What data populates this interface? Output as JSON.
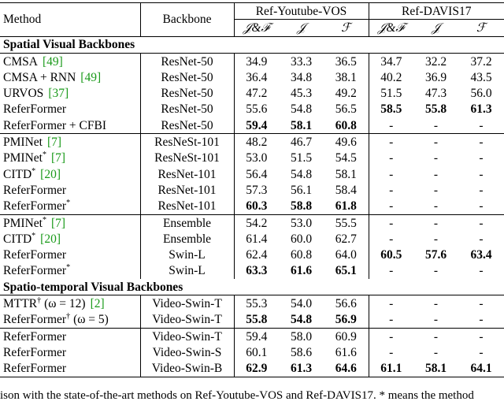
{
  "header": {
    "method": "Method",
    "backbone": "Backbone",
    "groups": [
      "Ref-Youtube-VOS",
      "Ref-DAVIS17"
    ],
    "metrics": [
      "𝒥&ℱ",
      "𝒥",
      "ℱ",
      "𝒥&ℱ",
      "𝒥",
      "ℱ"
    ]
  },
  "sections": [
    {
      "title": "Spatial Visual Backbones",
      "blocks": [
        [
          {
            "method": [
              {
                "t": "CMSA"
              },
              {
                "t": "[49]",
                "k": "cite"
              }
            ],
            "backbone": "ResNet-50",
            "values": [
              "34.9",
              "33.3",
              "36.5",
              "34.7",
              "32.2",
              "37.2"
            ],
            "bold": []
          },
          {
            "method": [
              {
                "t": "CMSA + RNN"
              },
              {
                "t": "[49]",
                "k": "cite"
              }
            ],
            "backbone": "ResNet-50",
            "values": [
              "36.4",
              "34.8",
              "38.1",
              "40.2",
              "36.9",
              "43.5"
            ],
            "bold": []
          },
          {
            "method": [
              {
                "t": "URVOS"
              },
              {
                "t": "[37]",
                "k": "cite"
              }
            ],
            "backbone": "ResNet-50",
            "values": [
              "47.2",
              "45.3",
              "49.2",
              "51.5",
              "47.3",
              "56.0"
            ],
            "bold": []
          },
          {
            "method": [
              {
                "t": "ReferFormer"
              }
            ],
            "backbone": "ResNet-50",
            "values": [
              "55.6",
              "54.8",
              "56.5",
              "58.5",
              "55.8",
              "61.3"
            ],
            "bold": [
              3,
              4,
              5
            ]
          },
          {
            "method": [
              {
                "t": "ReferFormer + CFBI"
              }
            ],
            "backbone": "ResNet-50",
            "values": [
              "59.4",
              "58.1",
              "60.8",
              "-",
              "-",
              "-"
            ],
            "bold": [
              0,
              1,
              2
            ]
          }
        ],
        [
          {
            "method": [
              {
                "t": "PMINet"
              },
              {
                "t": "[7]",
                "k": "cite"
              }
            ],
            "backbone": "ResNeSt-101",
            "values": [
              "48.2",
              "46.7",
              "49.6",
              "-",
              "-",
              "-"
            ],
            "bold": []
          },
          {
            "method": [
              {
                "t": "PMINet"
              },
              {
                "t": "*",
                "k": "sup"
              },
              {
                "t": "[7]",
                "k": "cite"
              }
            ],
            "backbone": "ResNeSt-101",
            "values": [
              "53.0",
              "51.5",
              "54.5",
              "-",
              "-",
              "-"
            ],
            "bold": []
          },
          {
            "method": [
              {
                "t": "CITD"
              },
              {
                "t": "*",
                "k": "sup"
              },
              {
                "t": "[20]",
                "k": "cite"
              }
            ],
            "backbone": "ResNet-101",
            "values": [
              "56.4",
              "54.8",
              "58.1",
              "-",
              "-",
              "-"
            ],
            "bold": []
          },
          {
            "method": [
              {
                "t": "ReferFormer"
              }
            ],
            "backbone": "ResNet-101",
            "values": [
              "57.3",
              "56.1",
              "58.4",
              "-",
              "-",
              "-"
            ],
            "bold": []
          },
          {
            "method": [
              {
                "t": "ReferFormer"
              },
              {
                "t": "*",
                "k": "sup"
              }
            ],
            "backbone": "ResNet-101",
            "values": [
              "60.3",
              "58.8",
              "61.8",
              "-",
              "-",
              "-"
            ],
            "bold": [
              0,
              1,
              2
            ]
          }
        ],
        [
          {
            "method": [
              {
                "t": "PMINet"
              },
              {
                "t": "*",
                "k": "sup"
              },
              {
                "t": "[7]",
                "k": "cite"
              }
            ],
            "backbone": "Ensemble",
            "values": [
              "54.2",
              "53.0",
              "55.5",
              "-",
              "-",
              "-"
            ],
            "bold": []
          },
          {
            "method": [
              {
                "t": "CITD"
              },
              {
                "t": "*",
                "k": "sup"
              },
              {
                "t": "[20]",
                "k": "cite"
              }
            ],
            "backbone": "Ensemble",
            "values": [
              "61.4",
              "60.0",
              "62.7",
              "-",
              "-",
              "-"
            ],
            "bold": []
          },
          {
            "method": [
              {
                "t": "ReferFormer"
              }
            ],
            "backbone": "Swin-L",
            "values": [
              "62.4",
              "60.8",
              "64.0",
              "60.5",
              "57.6",
              "63.4"
            ],
            "bold": [
              3,
              4,
              5
            ]
          },
          {
            "method": [
              {
                "t": "ReferFormer"
              },
              {
                "t": "*",
                "k": "sup"
              }
            ],
            "backbone": "Swin-L",
            "values": [
              "63.3",
              "61.6",
              "65.1",
              "-",
              "-",
              "-"
            ],
            "bold": [
              0,
              1,
              2
            ]
          }
        ]
      ]
    },
    {
      "title": "Spatio-temporal Visual Backbones",
      "blocks": [
        [
          {
            "method": [
              {
                "t": "MTTR"
              },
              {
                "t": "†",
                "k": "sup"
              },
              {
                "t": "(ω = 12)"
              },
              {
                "t": "[2]",
                "k": "cite"
              }
            ],
            "backbone": "Video-Swin-T",
            "values": [
              "55.3",
              "54.0",
              "56.6",
              "-",
              "-",
              "-"
            ],
            "bold": []
          },
          {
            "method": [
              {
                "t": "ReferFormer"
              },
              {
                "t": "†",
                "k": "sup"
              },
              {
                "t": "(ω = 5)"
              }
            ],
            "backbone": "Video-Swin-T",
            "values": [
              "55.8",
              "54.8",
              "56.9",
              "-",
              "-",
              "-"
            ],
            "bold": [
              0,
              1,
              2
            ]
          }
        ],
        [
          {
            "method": [
              {
                "t": "ReferFormer"
              }
            ],
            "backbone": "Video-Swin-T",
            "values": [
              "59.4",
              "58.0",
              "60.9",
              "-",
              "-",
              "-"
            ],
            "bold": []
          },
          {
            "method": [
              {
                "t": "ReferFormer"
              }
            ],
            "backbone": "Video-Swin-S",
            "values": [
              "60.1",
              "58.6",
              "61.6",
              "-",
              "-",
              "-"
            ],
            "bold": []
          },
          {
            "method": [
              {
                "t": "ReferFormer"
              }
            ],
            "backbone": "Video-Swin-B",
            "values": [
              "62.9",
              "61.3",
              "64.6",
              "61.1",
              "58.1",
              "64.1"
            ],
            "bold": [
              0,
              1,
              2,
              3,
              4,
              5
            ]
          }
        ]
      ]
    }
  ],
  "caption": "ison with the state-of-the-art methods on Ref-Youtube-VOS and Ref-DAVIS17. * means the method"
}
